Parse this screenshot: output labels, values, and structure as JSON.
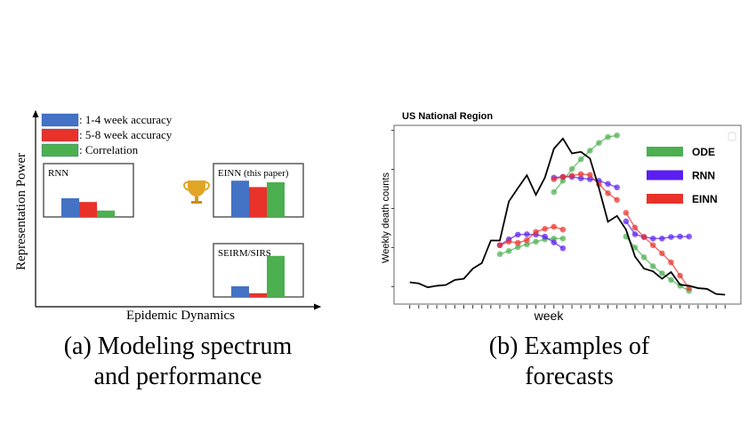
{
  "chart_data": [
    {
      "type": "bar",
      "panel": "a",
      "xlabel": "Epidemic Dynamics",
      "ylabel": "Representation Power",
      "legend": [
        {
          "label": ": 1-4 week accuracy",
          "color": "#4472c4"
        },
        {
          "label": ": 5-8 week accuracy",
          "color": "#e8322a"
        },
        {
          "label": ": Correlation",
          "color": "#4caf50"
        }
      ],
      "groups": [
        {
          "name": "RNN",
          "values": [
            0.35,
            0.28,
            0.12
          ]
        },
        {
          "name": "EINN (this paper)",
          "values": [
            0.68,
            0.56,
            0.65
          ]
        },
        {
          "name": "SEIRM/SIRS",
          "values": [
            0.2,
            0.07,
            0.77
          ]
        }
      ],
      "icon": "trophy-icon",
      "caption_lines": [
        "(a) Modeling spectrum",
        "and performance"
      ]
    },
    {
      "type": "line",
      "panel": "b",
      "title": "US National Region",
      "xlabel": "week",
      "ylabel": "Weekly death counts",
      "ylim": [
        0.5,
        5.4
      ],
      "xlim": [
        0,
        35
      ],
      "grid": false,
      "legend_position": "top-right",
      "ground_truth": [
        1.11,
        1.08,
        0.98,
        1.02,
        1.04,
        1.17,
        1.2,
        1.46,
        1.6,
        2.18,
        2.18,
        3.18,
        3.52,
        3.85,
        3.35,
        3.79,
        4.53,
        4.79,
        4.41,
        4.45,
        4.28,
        3.52,
        2.66,
        2.81,
        2.46,
        1.77,
        1.46,
        1.39,
        1.2,
        1.37,
        1.05,
        1.02,
        0.96,
        0.94,
        0.81,
        0.79
      ],
      "series": [
        {
          "name": "ODE",
          "color": "#4caf50",
          "forecasts": [
            {
              "start": 10,
              "values": [
                1.83,
                1.91,
                2.01,
                2.08,
                2.15,
                2.21,
                2.23,
                2.23
              ]
            },
            {
              "start": 16,
              "values": [
                3.42,
                3.71,
                4.01,
                4.26,
                4.48,
                4.68,
                4.83,
                4.87
              ]
            },
            {
              "start": 24,
              "values": [
                2.28,
                2.0,
                1.75,
                1.52,
                1.34,
                1.17,
                1.02,
                0.89
              ]
            }
          ]
        },
        {
          "name": "RNN",
          "color": "#5a1ef0",
          "forecasts": [
            {
              "start": 10,
              "values": [
                2.06,
                2.21,
                2.33,
                2.34,
                2.33,
                2.28,
                2.13,
                1.98
              ]
            },
            {
              "start": 16,
              "values": [
                3.79,
                3.81,
                3.81,
                3.77,
                3.75,
                3.71,
                3.63,
                3.54
              ]
            },
            {
              "start": 24,
              "values": [
                2.67,
                2.34,
                2.27,
                2.23,
                2.23,
                2.27,
                2.28,
                2.28
              ]
            }
          ]
        },
        {
          "name": "EINN",
          "color": "#e8322a",
          "forecasts": [
            {
              "start": 10,
              "values": [
                2.06,
                2.15,
                2.12,
                2.19,
                2.4,
                2.48,
                2.53,
                2.46
              ]
            },
            {
              "start": 16,
              "values": [
                3.75,
                3.81,
                3.84,
                3.88,
                3.86,
                3.62,
                3.39,
                3.22
              ]
            },
            {
              "start": 24,
              "values": [
                2.89,
                2.51,
                2.27,
                2.06,
                1.85,
                1.62,
                1.28,
                0.96
              ]
            }
          ]
        }
      ],
      "caption_lines": [
        "(b) Examples of",
        "forecasts"
      ]
    }
  ]
}
